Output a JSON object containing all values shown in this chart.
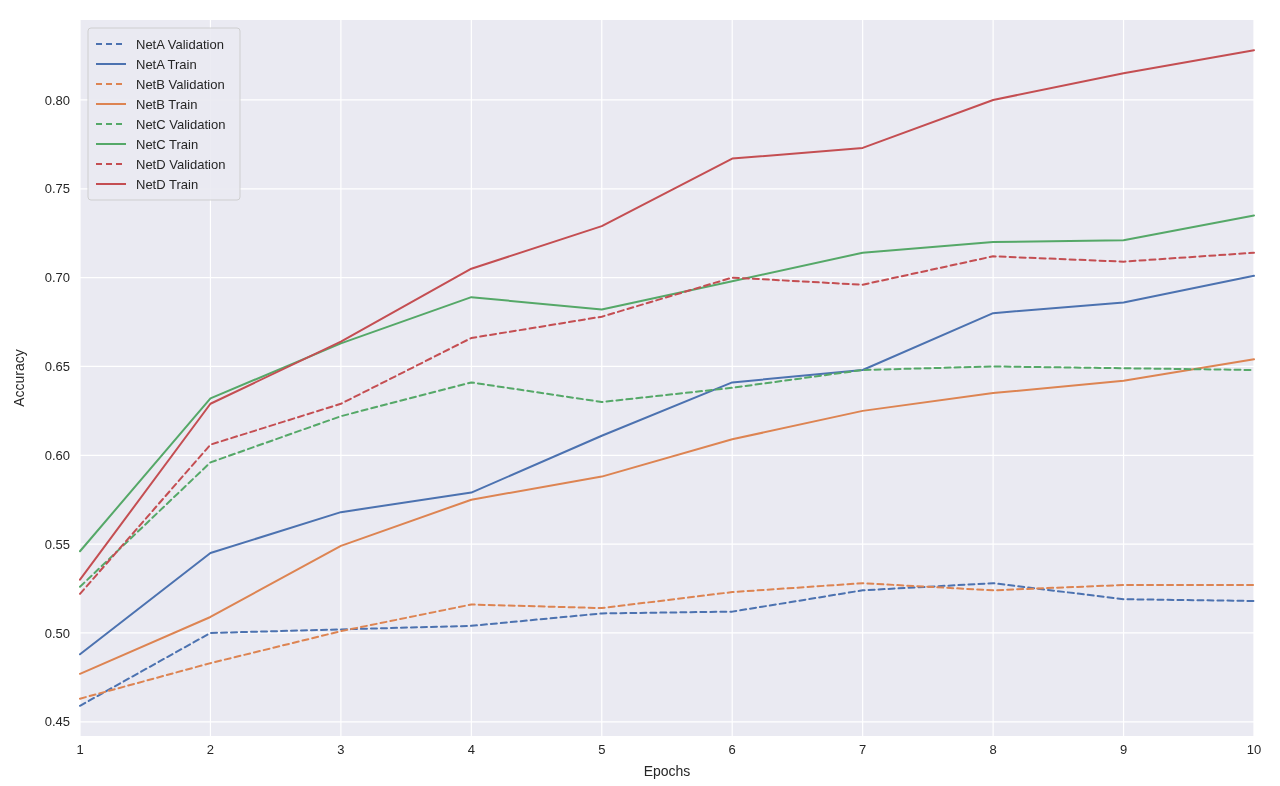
{
  "chart_data": {
    "type": "line",
    "xlabel": "Epochs",
    "ylabel": "Accuracy",
    "x": [
      1,
      2,
      3,
      4,
      5,
      6,
      7,
      8,
      9,
      10
    ],
    "xlim": [
      1,
      10
    ],
    "xticks": [
      1,
      2,
      3,
      4,
      5,
      6,
      7,
      8,
      9,
      10
    ],
    "ylim": [
      0.442,
      0.845
    ],
    "yticks": [
      {
        "value": 0.45,
        "label": "0.45"
      },
      {
        "value": 0.5,
        "label": "0.50"
      },
      {
        "value": 0.55,
        "label": "0.55"
      },
      {
        "value": 0.6,
        "label": "0.60"
      },
      {
        "value": 0.65,
        "label": "0.65"
      },
      {
        "value": 0.7,
        "label": "0.70"
      },
      {
        "value": 0.75,
        "label": "0.75"
      },
      {
        "value": 0.8,
        "label": "0.80"
      }
    ],
    "grid": true,
    "legend": "top left",
    "marker": "none",
    "series": [
      {
        "name": "NetA Validation",
        "color": "#4c72b0",
        "line_style": "dashed",
        "values": [
          0.459,
          0.5,
          0.502,
          0.504,
          0.511,
          0.512,
          0.524,
          0.528,
          0.519,
          0.518
        ]
      },
      {
        "name": "NetA Train",
        "color": "#4c72b0",
        "line_style": "solid",
        "values": [
          0.488,
          0.545,
          0.568,
          0.579,
          0.611,
          0.641,
          0.648,
          0.68,
          0.686,
          0.701
        ]
      },
      {
        "name": "NetB Validation",
        "color": "#dd8452",
        "line_style": "dashed",
        "values": [
          0.463,
          0.483,
          0.501,
          0.516,
          0.514,
          0.523,
          0.528,
          0.524,
          0.527,
          0.527
        ]
      },
      {
        "name": "NetB Train",
        "color": "#dd8452",
        "line_style": "solid",
        "values": [
          0.477,
          0.509,
          0.549,
          0.575,
          0.588,
          0.609,
          0.625,
          0.635,
          0.642,
          0.654
        ]
      },
      {
        "name": "NetC Validation",
        "color": "#55a868",
        "line_style": "dashed",
        "values": [
          0.526,
          0.596,
          0.622,
          0.641,
          0.63,
          0.638,
          0.648,
          0.65,
          0.649,
          0.648
        ]
      },
      {
        "name": "NetC Train",
        "color": "#55a868",
        "line_style": "solid",
        "values": [
          0.546,
          0.632,
          0.663,
          0.689,
          0.682,
          0.698,
          0.714,
          0.72,
          0.721,
          0.735
        ]
      },
      {
        "name": "NetD Validation",
        "color": "#c44e52",
        "line_style": "dashed",
        "values": [
          0.522,
          0.606,
          0.629,
          0.666,
          0.678,
          0.7,
          0.696,
          0.712,
          0.709,
          0.714
        ]
      },
      {
        "name": "NetD Train",
        "color": "#c44e52",
        "line_style": "solid",
        "values": [
          0.53,
          0.629,
          0.664,
          0.705,
          0.729,
          0.767,
          0.773,
          0.8,
          0.815,
          0.828
        ]
      }
    ]
  }
}
